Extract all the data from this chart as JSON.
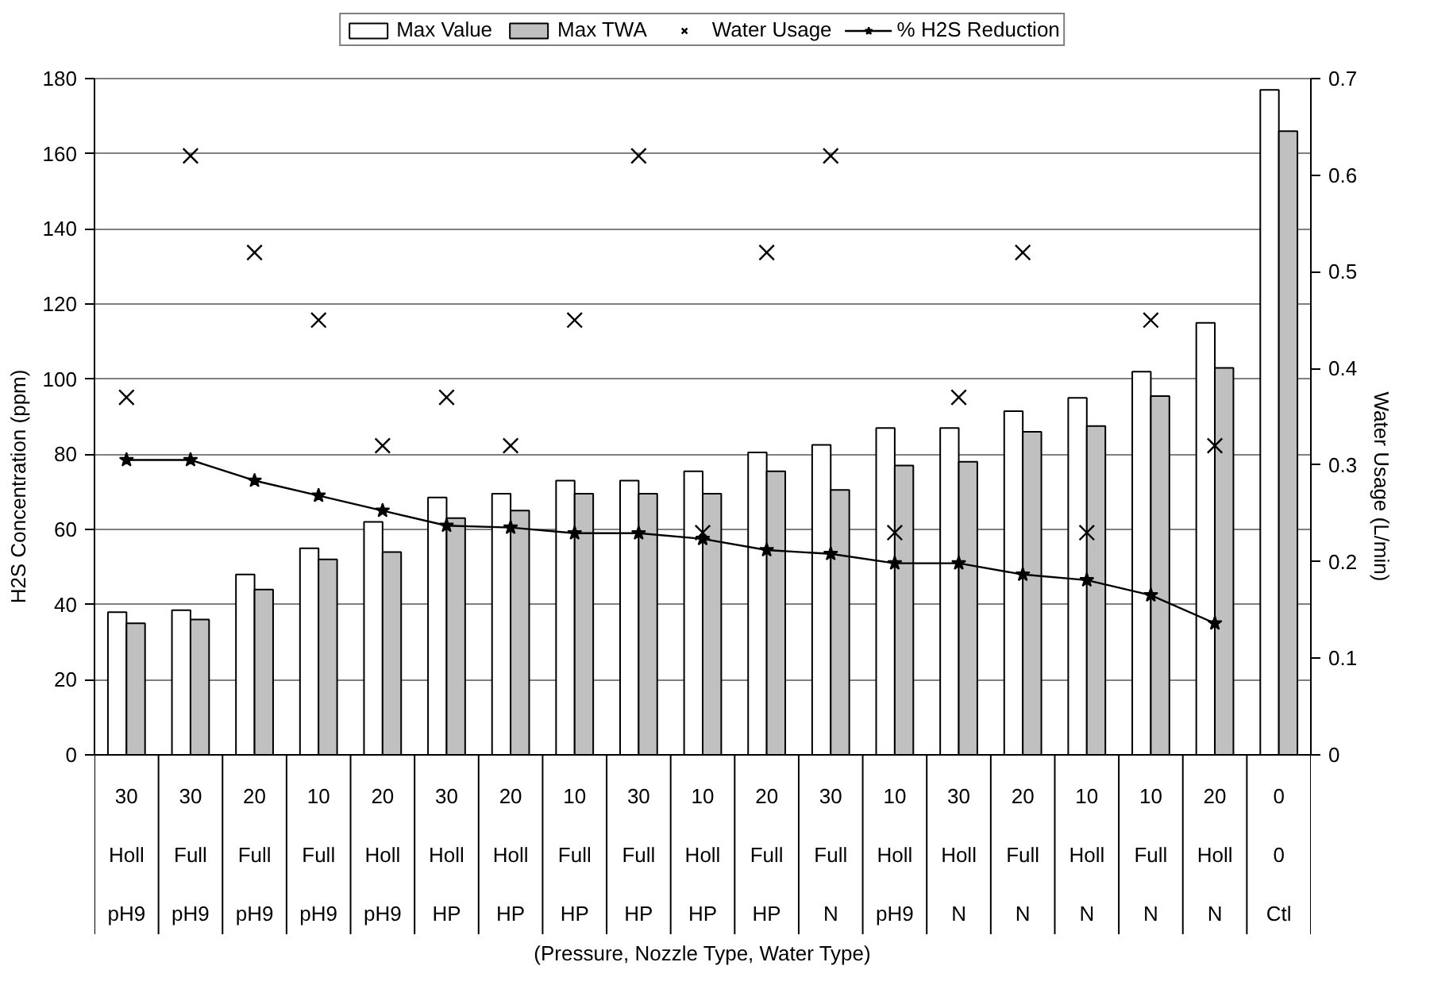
{
  "chart_data": {
    "type": "bar",
    "annotations": [
      "(Pressure, Nozzle Type, Water Type)"
    ],
    "ylabel": "H2S Concentration (ppm)",
    "y2label": "Water Usage (L/min)",
    "categories": [
      "30\nHoll\npH9",
      "30\nFull\npH9",
      "20\nFull\npH9",
      "10\nFull\npH9",
      "20\nHoll\npH9",
      "30\nHoll\nHP",
      "20\nHoll\nHP",
      "10\nFull\nHP",
      "30\nFull\nHP",
      "10\nHoll\nHP",
      "20\nFull\nHP",
      "30\nFull\nN",
      "10\nHoll\npH9",
      "30\nHoll\nN",
      "20\nFull\nN",
      "10\nHoll\nN",
      "10\nFull\nN",
      "20\nHoll\nN",
      "0\n0\nCtl"
    ],
    "series": [
      {
        "name": "Max Value",
        "color": "#ffffff",
        "values": [
          38,
          38.5,
          48,
          55,
          62,
          68.5,
          69.5,
          73,
          73,
          75.5,
          80.5,
          82.5,
          87,
          87,
          91.5,
          95,
          102,
          115,
          177
        ]
      },
      {
        "name": "Max TWA",
        "color": "#c0c0c0",
        "values": [
          35,
          36,
          44,
          52,
          54,
          63,
          65,
          69.5,
          69.5,
          69.5,
          75.5,
          70.5,
          77,
          78,
          86,
          87.5,
          95.5,
          103,
          166
        ]
      },
      {
        "name": "Water Usage",
        "type": "scatter",
        "marker": "cross",
        "axis": "y2",
        "color": "#000000",
        "values": [
          0.37,
          0.62,
          0.52,
          0.45,
          0.32,
          0.37,
          0.32,
          0.45,
          0.62,
          0.23,
          0.52,
          0.62,
          0.23,
          0.37,
          0.52,
          0.23,
          0.45,
          0.32,
          null
        ]
      },
      {
        "name": "% H2S Reduction",
        "type": "line",
        "marker": "star",
        "color": "#000000",
        "values": [
          78.5,
          78.5,
          73,
          69,
          65,
          61,
          60.5,
          59,
          59,
          57.5,
          54.5,
          53.5,
          51,
          51,
          48,
          46.5,
          42.5,
          35,
          null
        ]
      }
    ],
    "ylim": [
      0,
      180
    ],
    "yticks": [
      0,
      20,
      40,
      60,
      80,
      100,
      120,
      140,
      160,
      180
    ],
    "y2lim": [
      0,
      0.7
    ],
    "y2ticks": [
      0,
      0.1,
      0.2,
      0.3,
      0.4,
      0.5,
      0.6,
      0.7
    ],
    "grid": "y",
    "legend": "top"
  }
}
